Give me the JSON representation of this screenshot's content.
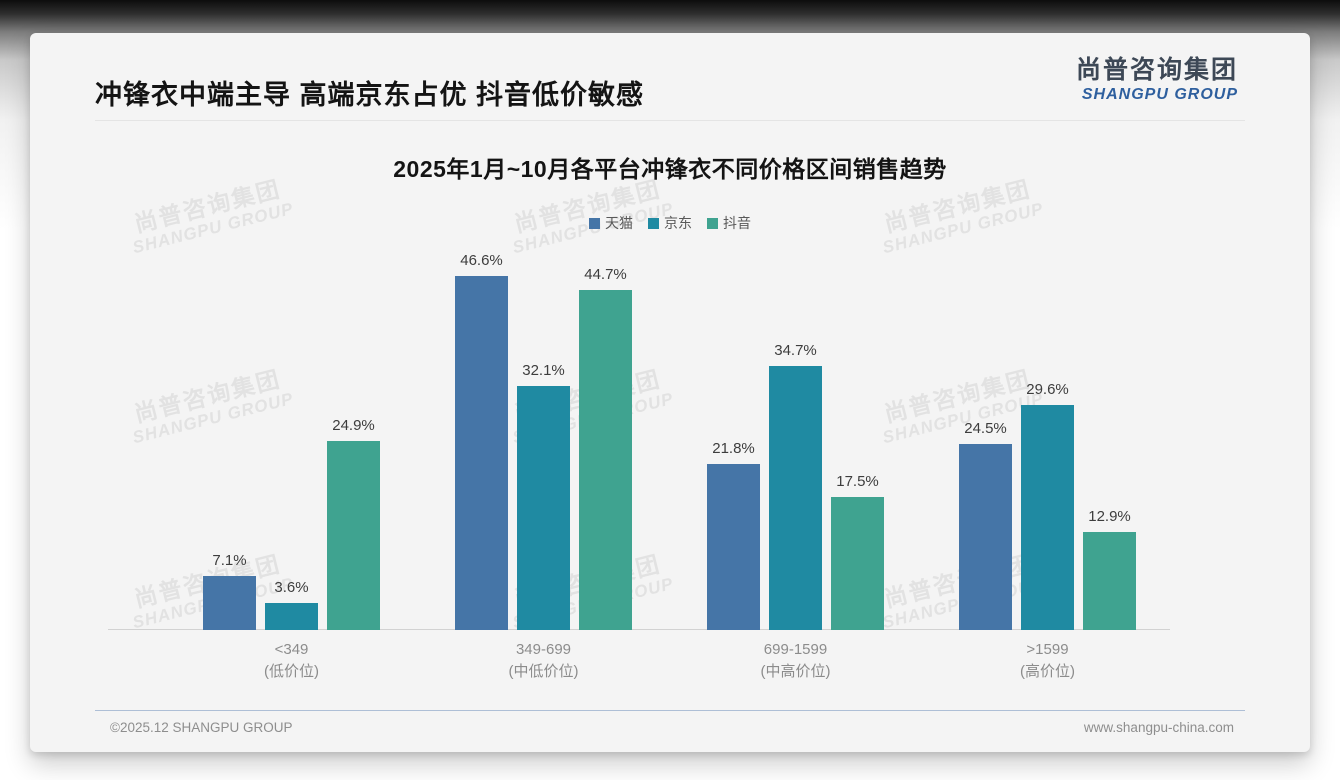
{
  "page": {
    "title": "冲锋衣中端主导 高端京东占优 抖音低价敏感",
    "logo": {
      "cn": "尚普咨询集团",
      "en": "SHANGPU GROUP"
    },
    "watermark": {
      "line1": "尚普咨询集团",
      "line2": "SHANGPU GROUP"
    },
    "footer": {
      "left": "©2025.12 SHANGPU GROUP",
      "right": "www.shangpu-china.com"
    }
  },
  "chart_data": {
    "type": "bar",
    "title": "2025年1月~10月各平台冲锋衣不同价格区间销售趋势",
    "categories": [
      "<349",
      "349-699",
      "699-1599",
      ">1599"
    ],
    "category_subs": [
      "(低价位)",
      "(中低价位)",
      "(中高价位)",
      "(高价位)"
    ],
    "series": [
      {
        "name": "天猫",
        "color": "#4575a7",
        "values": [
          7.1,
          46.6,
          21.8,
          24.5
        ]
      },
      {
        "name": "京东",
        "color": "#1f8aa2",
        "values": [
          3.6,
          32.1,
          34.7,
          29.6
        ]
      },
      {
        "name": "抖音",
        "color": "#3fa390",
        "values": [
          24.9,
          44.7,
          17.5,
          12.9
        ]
      }
    ],
    "value_suffix": "%",
    "ylim": [
      0,
      50
    ],
    "grid": false,
    "legend_position": "top",
    "xlabel": "",
    "ylabel": ""
  }
}
